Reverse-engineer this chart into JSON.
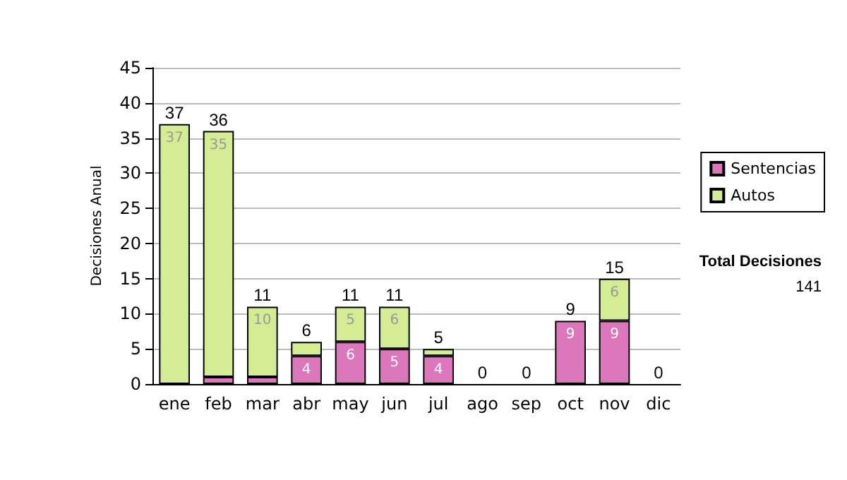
{
  "chart_data": {
    "type": "bar",
    "stacked": true,
    "ylabel": "Decisiones Anual",
    "categories": [
      "ene",
      "feb",
      "mar",
      "abr",
      "may",
      "jun",
      "jul",
      "ago",
      "sep",
      "oct",
      "nov",
      "dic"
    ],
    "series": [
      {
        "name": "Sentencias",
        "color": "#dd77bb",
        "values": [
          0,
          1,
          1,
          4,
          6,
          5,
          4,
          0,
          0,
          9,
          9,
          0
        ],
        "value_labels": [
          null,
          null,
          null,
          "4",
          "6",
          "5",
          "4",
          null,
          null,
          "9",
          "9",
          null
        ]
      },
      {
        "name": "Autos",
        "color": "#d4ec94",
        "values": [
          37,
          35,
          10,
          2,
          5,
          6,
          1,
          0,
          0,
          0,
          6,
          0
        ],
        "value_labels": [
          "37",
          "35",
          "10",
          null,
          "5",
          "6",
          null,
          null,
          null,
          null,
          "6",
          null
        ]
      }
    ],
    "totals": [
      "37",
      "36",
      "11",
      "6",
      "11",
      "11",
      "5",
      "0",
      "0",
      "9",
      "15",
      "0"
    ],
    "ylim": [
      0,
      45
    ],
    "yticks": [
      0,
      5,
      10,
      15,
      20,
      25,
      30,
      35,
      40,
      45
    ],
    "grid": "y",
    "legend": "right",
    "annotations": [
      "Total Decisiones",
      "141"
    ]
  }
}
